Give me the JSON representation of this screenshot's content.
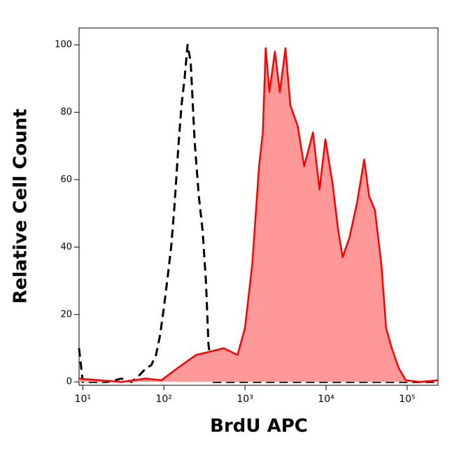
{
  "chart_data": {
    "type": "histogram-overlay",
    "x_label": "BrdU APC",
    "y_label": "Relative Cell Count",
    "xscale": "log",
    "xlim": [
      9,
      240000
    ],
    "ylim": [
      -1,
      105
    ],
    "xticks": [
      {
        "value": 10,
        "label": "10¹"
      },
      {
        "value": 100,
        "label": "10²"
      },
      {
        "value": 1000,
        "label": "10³"
      },
      {
        "value": 10000,
        "label": "10⁴"
      },
      {
        "value": 100000,
        "label": "10⁵"
      }
    ],
    "yticks": [
      0,
      20,
      40,
      60,
      80,
      100
    ],
    "series": [
      {
        "color": "#000000",
        "dashed": true,
        "filled": false,
        "x": [
          9,
          10,
          20,
          30,
          40,
          50,
          60,
          70,
          80,
          90,
          100,
          110,
          123,
          135,
          151,
          165,
          180,
          196,
          214,
          240,
          270,
          300,
          330,
          355,
          410,
          600,
          1000,
          5000,
          100000,
          240000
        ],
        "values": [
          10,
          0,
          0,
          1,
          0,
          2,
          4,
          5,
          8,
          14,
          22,
          30,
          40,
          52,
          70,
          82,
          90,
          100,
          95,
          71,
          55,
          45,
          30,
          11,
          0,
          0,
          0,
          0,
          0,
          0
        ]
      },
      {
        "color": "#ff0000",
        "fill": "#ff9999",
        "dashed": false,
        "filled": true,
        "x": [
          9,
          30,
          60,
          93,
          166,
          250,
          370,
          550,
          810,
          1000,
          1230,
          1490,
          1660,
          1800,
          2000,
          2340,
          2690,
          3160,
          3630,
          4460,
          5370,
          6900,
          8300,
          9800,
          12000,
          14100,
          16000,
          19500,
          24000,
          29500,
          34000,
          40000,
          48000,
          55000,
          64500,
          79000,
          96000,
          145000,
          240000
        ],
        "values": [
          1,
          0,
          1,
          0.5,
          5,
          8,
          9,
          10,
          8,
          16,
          35,
          64,
          74,
          99,
          86,
          98,
          86,
          99,
          82,
          76,
          64,
          74,
          57,
          72,
          59,
          45,
          37,
          43,
          53,
          66,
          55,
          51,
          35,
          16,
          10,
          4,
          0.5,
          0,
          0.5
        ]
      }
    ]
  }
}
